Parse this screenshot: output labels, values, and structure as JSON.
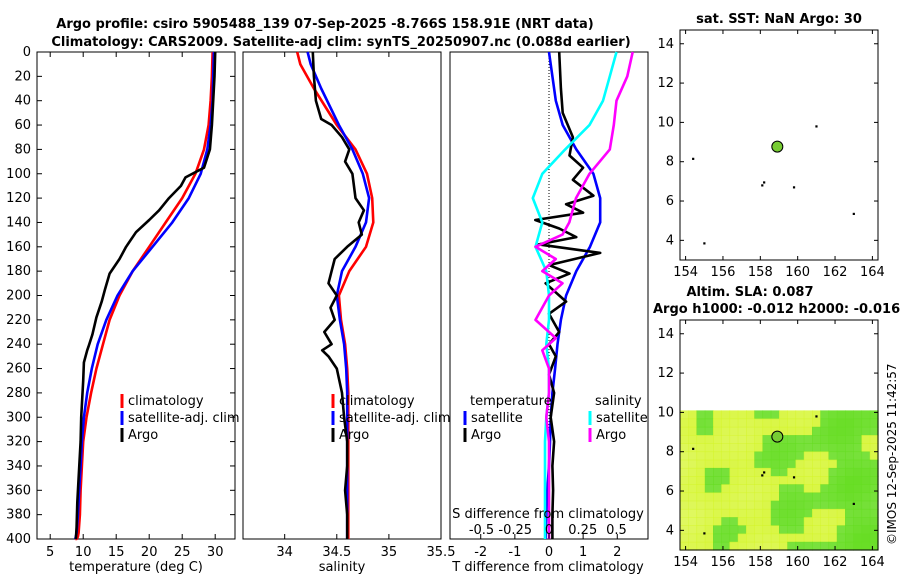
{
  "header": {
    "line1": "Argo profile: csiro 5905488_139 07-Sep-2025 -8.766S 158.91E (NRT data)",
    "line2": "Climatology: CARS2009. Satellite-adj clim: synTS_20250907.nc (0.088d earlier)"
  },
  "credit": "©IMOS 12-Sep-2025 11:42:57",
  "colors": {
    "climatology": "#ff0000",
    "satellite": "#0000ff",
    "argo": "#000000",
    "satellite_sal": "#00ffff",
    "argo_sal": "#ff00ff",
    "map_green": "#66dd22",
    "map_yellow": "#d4f52a",
    "float_marker": "#77cc33"
  },
  "chart_data": [
    {
      "id": "temperature",
      "type": "line",
      "xlabel": "temperature (deg C)",
      "ylabel": "depth",
      "xlim": [
        3,
        33
      ],
      "ylim": [
        0,
        400
      ],
      "xticks": [
        5,
        10,
        15,
        20,
        25,
        30
      ],
      "yticks": [
        0,
        20,
        40,
        60,
        80,
        100,
        120,
        140,
        160,
        180,
        200,
        220,
        240,
        260,
        280,
        300,
        320,
        340,
        360,
        380,
        400
      ],
      "legend": [
        "climatology",
        "satellite-adj. clim",
        "Argo"
      ],
      "series": [
        {
          "name": "climatology",
          "color": "#ff0000",
          "x": [
            29.6,
            29.5,
            29.3,
            29.0,
            28.3,
            27.0,
            25.0,
            22.5,
            20.0,
            17.5,
            15.5,
            14.0,
            13.0,
            12.0,
            11.2,
            10.5,
            10.0,
            9.8,
            9.6,
            9.5,
            9.3,
            9.2,
            9.1,
            9.0,
            8.9,
            8.8
          ],
          "y": [
            0,
            20,
            40,
            60,
            80,
            100,
            120,
            140,
            160,
            180,
            200,
            220,
            240,
            260,
            280,
            300,
            320,
            340,
            360,
            380,
            395,
            398,
            399,
            400,
            400,
            400
          ]
        },
        {
          "name": "satellite-adj. clim",
          "color": "#0000ff",
          "x": [
            29.8,
            29.7,
            29.6,
            29.3,
            28.8,
            27.8,
            26.0,
            23.5,
            20.5,
            17.5,
            15.2,
            13.5,
            12.2,
            11.3,
            10.6,
            10.1,
            9.8,
            9.6,
            9.4,
            9.2,
            9.0,
            8.8
          ],
          "y": [
            0,
            20,
            40,
            60,
            80,
            100,
            120,
            140,
            160,
            180,
            200,
            220,
            240,
            260,
            280,
            300,
            320,
            340,
            360,
            380,
            395,
            400
          ]
        },
        {
          "name": "Argo",
          "color": "#000000",
          "x": [
            30.0,
            29.9,
            29.7,
            29.5,
            29.2,
            28.3,
            25.5,
            24.8,
            23.0,
            21.5,
            20.0,
            18.0,
            16.5,
            15.5,
            14.0,
            13.3,
            12.8,
            12.0,
            11.4,
            10.8,
            10.6,
            10.1,
            10.0,
            9.7,
            9.6,
            9.3,
            9.1,
            9.0,
            8.9
          ],
          "y": [
            0,
            20,
            40,
            60,
            80,
            95,
            103,
            110,
            120,
            130,
            138,
            148,
            160,
            170,
            182,
            195,
            205,
            218,
            232,
            242,
            245,
            255,
            270,
            300,
            320,
            350,
            370,
            390,
            400
          ]
        }
      ]
    },
    {
      "id": "salinity",
      "type": "line",
      "xlabel": "salinity",
      "ylim": [
        0,
        400
      ],
      "xlim": [
        33.6,
        35.5
      ],
      "xticks": [
        34,
        34.5,
        35,
        35.5
      ],
      "xticklabels": [
        "34",
        "34.5",
        "35",
        "35.5"
      ],
      "legend": [
        "climatology",
        "satellite-adj. clim",
        "Argo"
      ],
      "series": [
        {
          "name": "climatology",
          "color": "#ff0000",
          "x": [
            34.12,
            34.15,
            34.28,
            34.5,
            34.68,
            34.79,
            34.84,
            34.85,
            34.78,
            34.62,
            34.52,
            34.54,
            34.58,
            34.6,
            34.61,
            34.61,
            34.61,
            34.61,
            34.61,
            34.61,
            34.61
          ],
          "y": [
            0,
            10,
            30,
            60,
            80,
            100,
            120,
            140,
            160,
            180,
            200,
            220,
            240,
            260,
            280,
            300,
            320,
            340,
            360,
            380,
            400
          ]
        },
        {
          "name": "satellite-adj. clim",
          "color": "#0000ff",
          "x": [
            34.22,
            34.25,
            34.35,
            34.52,
            34.65,
            34.75,
            34.81,
            34.78,
            34.68,
            34.55,
            34.5,
            34.53,
            34.57,
            34.59,
            34.6,
            34.6,
            34.6,
            34.6,
            34.6,
            34.6,
            34.6
          ],
          "y": [
            0,
            10,
            30,
            60,
            80,
            100,
            120,
            140,
            160,
            180,
            200,
            220,
            240,
            260,
            280,
            300,
            320,
            340,
            360,
            380,
            400
          ]
        },
        {
          "name": "Argo",
          "color": "#000000",
          "x": [
            34.27,
            34.28,
            34.3,
            34.35,
            34.45,
            34.55,
            34.62,
            34.58,
            34.65,
            34.68,
            34.76,
            34.71,
            34.74,
            34.6,
            34.48,
            34.45,
            34.42,
            34.5,
            34.44,
            34.48,
            34.38,
            34.45,
            34.36,
            34.42,
            34.5,
            34.55,
            34.57,
            34.6,
            34.6,
            34.58,
            34.6,
            34.6
          ],
          "y": [
            0,
            20,
            40,
            55,
            60,
            70,
            80,
            90,
            100,
            120,
            130,
            140,
            150,
            160,
            170,
            180,
            190,
            200,
            210,
            220,
            230,
            240,
            245,
            250,
            260,
            280,
            300,
            320,
            340,
            360,
            380,
            400
          ]
        }
      ]
    },
    {
      "id": "difference",
      "type": "line",
      "xlabel": "T difference from climatology",
      "xlabel_top": "S difference from climatology",
      "ylim": [
        0,
        400
      ],
      "xlim": [
        -2.9,
        2.9
      ],
      "xticks": [
        -2,
        -1,
        0,
        1,
        2
      ],
      "xticklabels": [
        "-2",
        "-1",
        "0",
        "1",
        "2"
      ],
      "sxticks": [
        -0.5,
        -0.25,
        0,
        0.25,
        0.5
      ],
      "sxticklabels": [
        "-0.5",
        "-0.25",
        "0",
        "0.25",
        "0.5"
      ],
      "legend": {
        "temperature_title": "temperature",
        "salinity_title": "salinity",
        "entries": [
          "satellite",
          "Argo",
          "satellite",
          "Argo"
        ]
      },
      "series": [
        {
          "name": "T satellite",
          "color": "#0000ff",
          "x": [
            0.0,
            0.1,
            0.2,
            0.4,
            0.8,
            1.3,
            1.5,
            1.5,
            1.2,
            0.8,
            0.5,
            0.35,
            0.25,
            0.18,
            0.1,
            0.05,
            0.03,
            0.0,
            -0.05,
            -0.08,
            -0.1
          ],
          "y": [
            0,
            20,
            40,
            60,
            80,
            100,
            120,
            140,
            160,
            180,
            200,
            220,
            240,
            260,
            280,
            300,
            320,
            340,
            360,
            380,
            400
          ]
        },
        {
          "name": "T Argo",
          "color": "#000000",
          "x": [
            0.3,
            0.35,
            0.4,
            0.7,
            0.6,
            1.0,
            0.7,
            1.3,
            0.5,
            1.0,
            -0.4,
            0.3,
            0.8,
            -0.3,
            1.5,
            0.0,
            0.6,
            -0.1,
            0.5,
            0.0,
            0.3,
            0.0,
            0.2,
            0.0,
            0.15,
            0.05,
            0.15,
            0.1,
            0.12,
            0.1,
            0.1
          ],
          "y": [
            0,
            30,
            50,
            70,
            85,
            95,
            105,
            118,
            125,
            132,
            138,
            145,
            152,
            158,
            165,
            175,
            182,
            190,
            205,
            215,
            230,
            240,
            250,
            265,
            280,
            300,
            320,
            340,
            360,
            380,
            400
          ]
        },
        {
          "name": "S satellite",
          "color": "#00ffff",
          "x": [
            0.5,
            0.45,
            0.4,
            0.3,
            0.12,
            -0.05,
            -0.12,
            -0.05,
            -0.1,
            -0.02,
            0.0,
            0.0,
            -0.02,
            0.0,
            0.0,
            -0.02,
            -0.03,
            -0.03,
            -0.03,
            -0.03,
            -0.03
          ],
          "y": [
            0,
            20,
            40,
            60,
            80,
            100,
            120,
            140,
            160,
            180,
            200,
            220,
            240,
            260,
            280,
            300,
            320,
            340,
            360,
            380,
            400
          ]
        },
        {
          "name": "S Argo",
          "color": "#ff00ff",
          "x": [
            0.62,
            0.58,
            0.5,
            0.48,
            0.45,
            0.3,
            0.2,
            0.15,
            0.1,
            -0.1,
            0.05,
            -0.05,
            0.1,
            0.0,
            -0.1,
            0.05,
            -0.05,
            0.0,
            0.0,
            -0.02,
            0.0,
            0.0,
            0.0,
            0.0
          ],
          "y": [
            0,
            20,
            40,
            60,
            80,
            100,
            120,
            140,
            150,
            160,
            170,
            180,
            190,
            200,
            220,
            235,
            245,
            260,
            280,
            300,
            320,
            340,
            360,
            400
          ]
        }
      ]
    },
    {
      "id": "sst_map",
      "type": "scatter",
      "title": "sat. SST: NaN Argo: 30",
      "xlim": [
        153.7,
        164.3
      ],
      "ylim": [
        3,
        14.7
      ],
      "xticks": [
        154,
        156,
        158,
        160,
        162,
        164
      ],
      "yticks": [
        4,
        6,
        8,
        10,
        12,
        14
      ],
      "float": {
        "lon": 158.91,
        "lat": 8.766
      },
      "dots": [
        [
          154.4,
          8.15
        ],
        [
          158.2,
          6.95
        ],
        [
          158.1,
          6.8
        ],
        [
          159.8,
          6.7
        ],
        [
          161.0,
          9.8
        ],
        [
          163.0,
          5.35
        ],
        [
          155.0,
          3.85
        ]
      ]
    },
    {
      "id": "sla_map",
      "type": "heatmap",
      "title_line1": "Altim. SLA: 0.087",
      "title_line2": "Argo h1000: -0.012 h2000: -0.016",
      "xlim": [
        153.7,
        164.3
      ],
      "ylim": [
        3,
        14.7
      ],
      "xticks": [
        154,
        156,
        158,
        160,
        162,
        164
      ],
      "yticks": [
        4,
        6,
        8,
        10,
        12,
        14
      ],
      "field_top_lat": 10.1,
      "float": {
        "lon": 158.91,
        "lat": 8.766
      },
      "dots": [
        [
          154.4,
          8.15
        ],
        [
          158.2,
          6.95
        ],
        [
          158.1,
          6.8
        ],
        [
          159.8,
          6.7
        ],
        [
          161.0,
          9.8
        ],
        [
          163.0,
          5.35
        ],
        [
          155.0,
          3.85
        ]
      ]
    }
  ]
}
